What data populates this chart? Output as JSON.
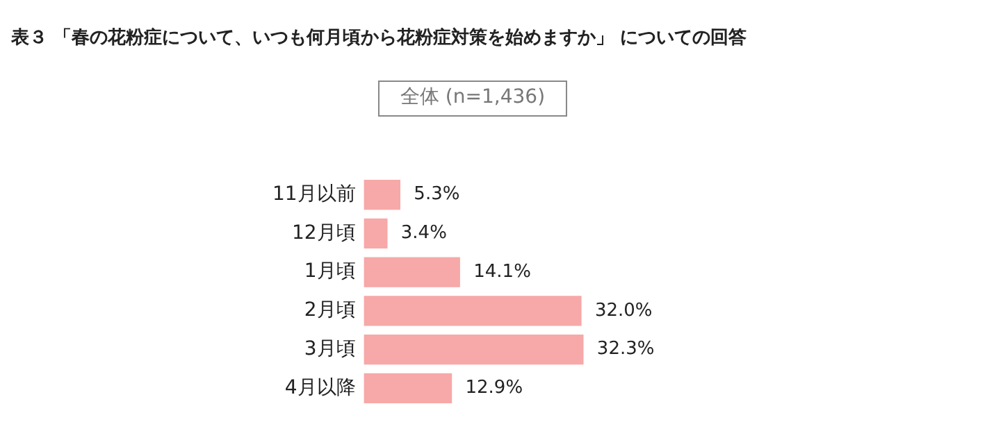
{
  "chart_data": {
    "type": "bar",
    "orientation": "horizontal",
    "title": "表３ 「春の花粉症について、いつも何月頃から花粉症対策を始めますか」 についての回答",
    "subtitle": "全体 (n=1,436)",
    "categories": [
      "11月以前",
      "12月頃",
      "1月頃",
      "2月頃",
      "3月頃",
      "4月以降"
    ],
    "values": [
      5.3,
      3.4,
      14.1,
      32.0,
      32.3,
      12.9
    ],
    "value_labels": [
      "5.3%",
      "3.4%",
      "14.1%",
      "32.0%",
      "32.3%",
      "12.9%"
    ],
    "color": "#f7a8a8",
    "grid": false,
    "legend": false
  }
}
